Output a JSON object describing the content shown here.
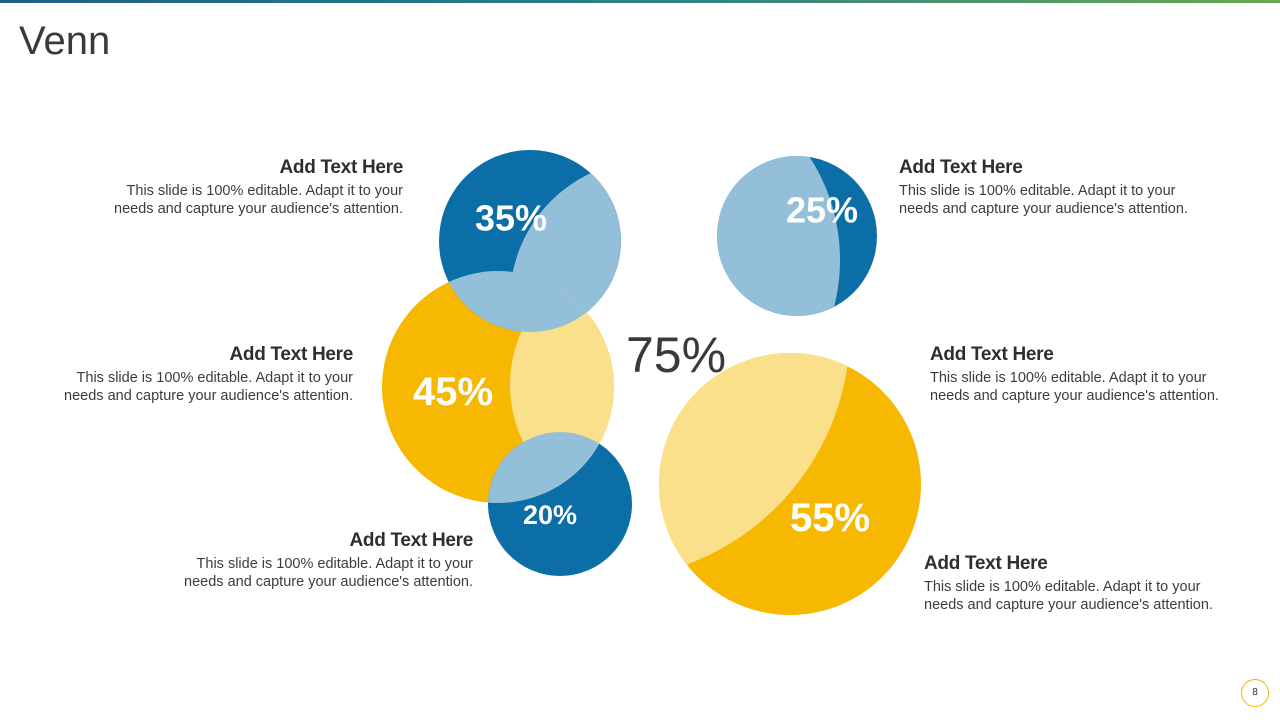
{
  "slide": {
    "title": "Venn",
    "page_number": "8"
  },
  "colors": {
    "blue": "#0b6ea6",
    "blue_overlap": "#93bfd8",
    "yellow": "#f7b801",
    "yellow_overlap": "#fbe08c"
  },
  "diagram": {
    "center_value": "75%",
    "circles": [
      {
        "label": "35%",
        "color": "blue"
      },
      {
        "label": "45%",
        "color": "yellow"
      },
      {
        "label": "20%",
        "color": "blue"
      },
      {
        "label": "25%",
        "color": "blue"
      },
      {
        "label": "55%",
        "color": "yellow"
      }
    ]
  },
  "text_blocks": [
    {
      "heading": "Add Text Here",
      "body_line1": "This slide is 100% editable. Adapt it to your",
      "body_line2": "needs and capture your audience's attention."
    },
    {
      "heading": "Add Text Here",
      "body_line1": "This slide is 100% editable. Adapt it to your",
      "body_line2": "needs and capture your audience's attention."
    },
    {
      "heading": "Add Text Here",
      "body_line1": "This slide is 100% editable. Adapt it to your",
      "body_line2": "needs and capture your audience's attention."
    },
    {
      "heading": "Add Text Here",
      "body_line1": "This slide is 100% editable. Adapt it to your",
      "body_line2": "needs and capture your audience's attention."
    },
    {
      "heading": "Add Text Here",
      "body_line1": "This slide is 100% editable. Adapt it to your",
      "body_line2": "needs and capture your audience's attention."
    },
    {
      "heading": "Add Text Here",
      "body_line1": "This slide is 100% editable. Adapt it to your",
      "body_line2": "needs and capture your audience's attention."
    }
  ]
}
